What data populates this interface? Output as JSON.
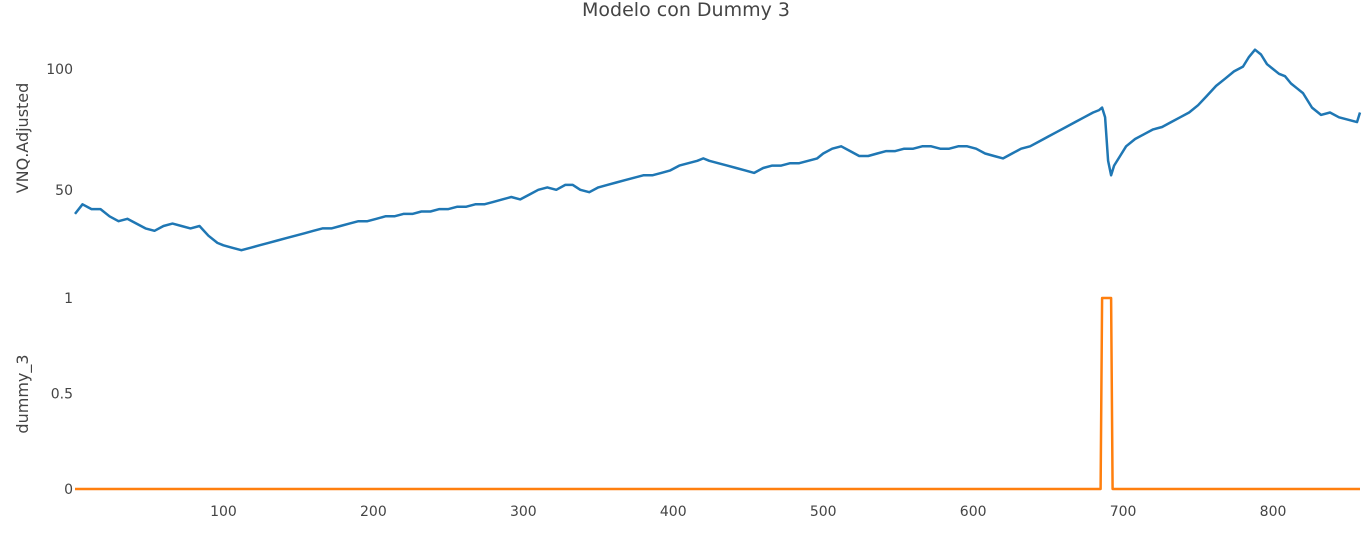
{
  "chart_data": [
    {
      "type": "line",
      "title": "Modelo con Dummy 3",
      "xlabel": "",
      "ylabel": "VNQ.Adjusted",
      "xlim": [
        1,
        858
      ],
      "ylim": [
        23,
        112
      ],
      "x_ticks": [
        100,
        200,
        300,
        400,
        500,
        600,
        700,
        800
      ],
      "y_ticks": [
        50,
        100
      ],
      "grid": false,
      "color": "#1f77b4",
      "series": [
        {
          "x": [
            1,
            6,
            12,
            18,
            24,
            30,
            36,
            42,
            48,
            54,
            60,
            66,
            72,
            78,
            84,
            90,
            96,
            100,
            106,
            112,
            118,
            124,
            130,
            136,
            142,
            148,
            154,
            160,
            166,
            172,
            178,
            184,
            190,
            196,
            202,
            208,
            214,
            220,
            226,
            232,
            238,
            244,
            250,
            256,
            262,
            268,
            274,
            280,
            286,
            292,
            298,
            304,
            310,
            316,
            322,
            328,
            333,
            338,
            344,
            350,
            356,
            362,
            368,
            374,
            380,
            386,
            392,
            398,
            404,
            410,
            416,
            420,
            424,
            430,
            436,
            442,
            448,
            454,
            460,
            466,
            472,
            478,
            484,
            490,
            496,
            500,
            506,
            512,
            518,
            524,
            530,
            536,
            542,
            548,
            554,
            560,
            566,
            572,
            578,
            584,
            590,
            596,
            602,
            608,
            614,
            620,
            626,
            632,
            638,
            644,
            650,
            656,
            662,
            668,
            674,
            680,
            684,
            686,
            688,
            690,
            692,
            694,
            698,
            702,
            708,
            714,
            720,
            726,
            732,
            738,
            744,
            750,
            756,
            762,
            768,
            774,
            780,
            784,
            788,
            792,
            796,
            800,
            804,
            808,
            812,
            816,
            820,
            826,
            832,
            838,
            844,
            850,
            856,
            858
          ],
          "y": [
            40,
            44,
            42,
            42,
            39,
            37,
            38,
            36,
            34,
            33,
            35,
            36,
            35,
            34,
            35,
            31,
            28,
            27,
            26,
            25,
            26,
            27,
            28,
            29,
            30,
            31,
            32,
            33,
            34,
            34,
            35,
            36,
            37,
            37,
            38,
            39,
            39,
            40,
            40,
            41,
            41,
            42,
            42,
            43,
            43,
            44,
            44,
            45,
            46,
            47,
            46,
            48,
            50,
            51,
            50,
            52,
            52,
            50,
            49,
            51,
            52,
            53,
            54,
            55,
            56,
            56,
            57,
            58,
            60,
            61,
            62,
            63,
            62,
            61,
            60,
            59,
            58,
            57,
            59,
            60,
            60,
            61,
            61,
            62,
            63,
            65,
            67,
            68,
            66,
            64,
            64,
            65,
            66,
            66,
            67,
            67,
            68,
            68,
            67,
            67,
            68,
            68,
            67,
            65,
            64,
            63,
            65,
            67,
            68,
            70,
            72,
            74,
            76,
            78,
            80,
            82,
            83,
            84,
            80,
            62,
            56,
            60,
            64,
            68,
            71,
            73,
            75,
            76,
            78,
            80,
            82,
            85,
            89,
            93,
            96,
            99,
            101,
            105,
            108,
            106,
            102,
            100,
            98,
            97,
            94,
            92,
            90,
            84,
            81,
            82,
            80,
            79,
            78,
            82
          ]
        }
      ]
    },
    {
      "type": "line",
      "title": "",
      "xlabel": "",
      "ylabel": "dummy_3",
      "xlim": [
        1,
        858
      ],
      "ylim": [
        0,
        1
      ],
      "x_ticks": [
        100,
        200,
        300,
        400,
        500,
        600,
        700,
        800
      ],
      "y_ticks": [
        0,
        0.5,
        1
      ],
      "grid": false,
      "color": "#ff7f0e",
      "series": [
        {
          "x": [
            1,
            685,
            686,
            692,
            693,
            858
          ],
          "y": [
            0,
            0,
            1,
            1,
            0,
            0
          ]
        }
      ]
    }
  ]
}
